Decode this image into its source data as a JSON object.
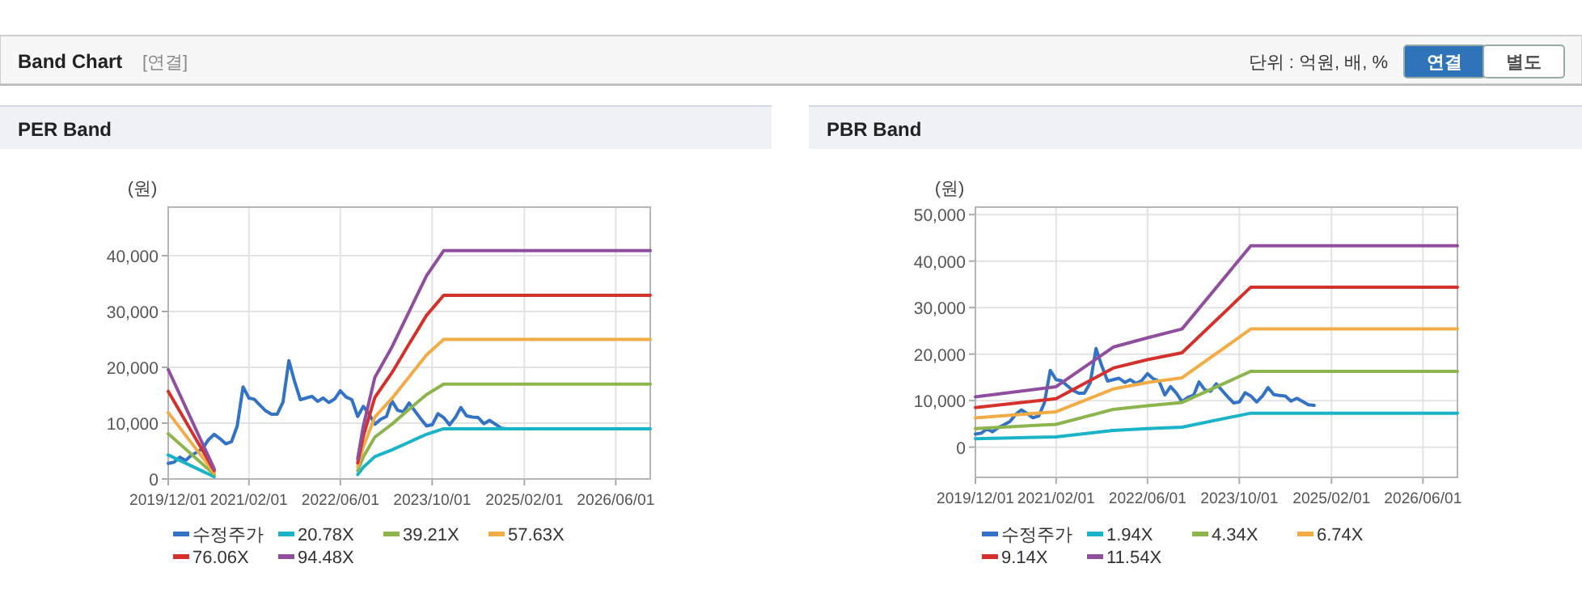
{
  "chart_data": [
    {
      "type": "line",
      "title": "PER Band",
      "ylabel": "(원)",
      "annotations": [
        "Band Chart",
        "[연결]",
        "단위 : 억원, 배, %",
        "연결",
        "별도"
      ],
      "x": [
        "2019-12",
        "2020-01",
        "2020-02",
        "2020-03",
        "2020-04",
        "2020-05",
        "2020-06",
        "2020-07",
        "2020-08",
        "2020-09",
        "2020-10",
        "2020-11",
        "2020-12",
        "2021-01",
        "2021-02",
        "2021-03",
        "2021-04",
        "2021-05",
        "2021-06",
        "2021-07",
        "2021-08",
        "2021-09",
        "2021-10",
        "2021-11",
        "2021-12",
        "2022-01",
        "2022-02",
        "2022-03",
        "2022-04",
        "2022-05",
        "2022-06",
        "2022-07",
        "2022-08",
        "2022-09",
        "2022-10",
        "2022-11",
        "2022-12",
        "2023-01",
        "2023-02",
        "2023-03",
        "2023-04",
        "2023-05",
        "2023-06",
        "2023-07",
        "2023-08",
        "2023-09",
        "2023-10",
        "2023-11",
        "2023-12",
        "2024-01",
        "2024-02",
        "2024-03",
        "2024-04",
        "2024-05",
        "2024-06",
        "2024-07",
        "2024-08",
        "2024-09",
        "2024-10",
        "2024-11"
      ],
      "series": [
        {
          "name": "수정주가",
          "color": "#3273c6",
          "values": [
            2800,
            3000,
            3900,
            3300,
            4200,
            4800,
            5500,
            7000,
            8000,
            7200,
            6300,
            6700,
            9500,
            16500,
            14500,
            14300,
            13200,
            12200,
            11600,
            11600,
            13800,
            21200,
            17500,
            14200,
            14500,
            14800,
            13900,
            14500,
            13700,
            14300,
            15800,
            14700,
            14200,
            11200,
            13000,
            11600,
            9800,
            10700,
            11200,
            14000,
            12300,
            12000,
            13600,
            12200,
            10800,
            9500,
            9700,
            11700,
            11000,
            9700,
            11000,
            12800,
            11300,
            11100,
            11000,
            9900,
            10500,
            9800,
            9100,
            9000
          ]
        },
        {
          "name": "20.78X",
          "color": "#1ab3c8",
          "x": [
            "2019-12",
            "2020-08",
            "2020-09",
            "2022-09",
            "2022-10",
            "2022-12",
            "2023-03",
            "2023-06",
            "2023-09",
            "2023-12",
            "2026-12"
          ],
          "values": [
            4300,
            400,
            null,
            800,
            2100,
            4000,
            5200,
            6600,
            8000,
            9000,
            9000
          ]
        },
        {
          "name": "39.21X",
          "color": "#8db54e",
          "x": [
            "2019-12",
            "2020-08",
            "2020-09",
            "2022-09",
            "2022-10",
            "2022-12",
            "2023-03",
            "2023-06",
            "2023-09",
            "2023-12",
            "2026-12"
          ],
          "values": [
            8100,
            800,
            null,
            1500,
            4000,
            7500,
            9800,
            12500,
            15100,
            17000,
            17000
          ]
        },
        {
          "name": "57.63X",
          "color": "#f2ac45",
          "x": [
            "2019-12",
            "2020-08",
            "2020-09",
            "2022-09",
            "2022-10",
            "2022-12",
            "2023-03",
            "2023-06",
            "2023-09",
            "2023-12",
            "2026-12"
          ],
          "values": [
            11900,
            1100,
            null,
            2200,
            5800,
            11100,
            14400,
            18300,
            22200,
            25000,
            25000
          ]
        },
        {
          "name": "76.06X",
          "color": "#d4312c",
          "x": [
            "2019-12",
            "2020-08",
            "2020-09",
            "2022-09",
            "2022-10",
            "2022-12",
            "2023-03",
            "2023-06",
            "2023-09",
            "2023-12",
            "2026-12"
          ],
          "values": [
            15700,
            1500,
            null,
            2900,
            7700,
            14600,
            19000,
            24200,
            29300,
            32900,
            32900
          ]
        },
        {
          "name": "94.48X",
          "color": "#8f4f9e",
          "x": [
            "2019-12",
            "2020-08",
            "2020-09",
            "2022-09",
            "2022-10",
            "2022-12",
            "2023-03",
            "2023-06",
            "2023-09",
            "2023-12",
            "2026-12"
          ],
          "values": [
            19600,
            1800,
            null,
            3600,
            9500,
            18200,
            23600,
            30000,
            36400,
            40900,
            40900
          ]
        }
      ],
      "xlim": [
        "2019-12-01",
        "2026-12-01"
      ],
      "xticks": [
        {
          "value": "2019-12-01",
          "label": "2019/12/01"
        },
        {
          "value": "2021-02-01",
          "label": "2021/02/01"
        },
        {
          "value": "2022-06-01",
          "label": "2022/06/01"
        },
        {
          "value": "2023-10-01",
          "label": "2023/10/01"
        },
        {
          "value": "2025-02-01",
          "label": "2025/02/01"
        },
        {
          "value": "2026-06-01",
          "label": "2026/06/01"
        }
      ],
      "ylim": [
        0,
        48700
      ],
      "yticks": [
        0,
        {
          "value": 10000,
          "label": "10,000"
        },
        {
          "value": 20000,
          "label": "20,000"
        },
        {
          "value": 30000,
          "label": "30,000"
        },
        {
          "value": 40000,
          "label": "40,000"
        }
      ],
      "grid": true,
      "legend": "bottom"
    },
    {
      "type": "line",
      "title": "PBR Band",
      "ylabel": "(원)",
      "x": [
        "2019-12",
        "2020-01",
        "2020-02",
        "2020-03",
        "2020-04",
        "2020-05",
        "2020-06",
        "2020-07",
        "2020-08",
        "2020-09",
        "2020-10",
        "2020-11",
        "2020-12",
        "2021-01",
        "2021-02",
        "2021-03",
        "2021-04",
        "2021-05",
        "2021-06",
        "2021-07",
        "2021-08",
        "2021-09",
        "2021-10",
        "2021-11",
        "2021-12",
        "2022-01",
        "2022-02",
        "2022-03",
        "2022-04",
        "2022-05",
        "2022-06",
        "2022-07",
        "2022-08",
        "2022-09",
        "2022-10",
        "2022-11",
        "2022-12",
        "2023-01",
        "2023-02",
        "2023-03",
        "2023-04",
        "2023-05",
        "2023-06",
        "2023-07",
        "2023-08",
        "2023-09",
        "2023-10",
        "2023-11",
        "2023-12",
        "2024-01",
        "2024-02",
        "2024-03",
        "2024-04",
        "2024-05",
        "2024-06",
        "2024-07",
        "2024-08",
        "2024-09",
        "2024-10",
        "2024-11"
      ],
      "series": [
        {
          "name": "수정주가",
          "color": "#3273c6",
          "values": [
            2800,
            3000,
            3900,
            3300,
            4200,
            4800,
            5500,
            7000,
            8000,
            7200,
            6300,
            6700,
            9500,
            16500,
            14500,
            14300,
            13200,
            12200,
            11600,
            11600,
            13800,
            21200,
            17500,
            14200,
            14500,
            14800,
            13900,
            14500,
            13700,
            14300,
            15800,
            14700,
            14200,
            11200,
            13000,
            11600,
            9800,
            10700,
            11200,
            14000,
            12300,
            12000,
            13600,
            12200,
            10800,
            9500,
            9700,
            11700,
            11000,
            9700,
            11000,
            12800,
            11300,
            11100,
            11000,
            9900,
            10500,
            9800,
            9100,
            9000
          ]
        },
        {
          "name": "1.94X",
          "color": "#1ab3c8",
          "x": [
            "2019-12",
            "2021-02",
            "2021-12",
            "2022-06",
            "2022-12",
            "2023-12",
            "2026-12"
          ],
          "values": [
            1800,
            2200,
            3600,
            4000,
            4300,
            7300,
            7300
          ]
        },
        {
          "name": "4.34X",
          "color": "#8db54e",
          "x": [
            "2019-12",
            "2021-02",
            "2021-12",
            "2022-06",
            "2022-12",
            "2023-12",
            "2026-12"
          ],
          "values": [
            4000,
            4900,
            8100,
            8900,
            9600,
            16300,
            16300
          ]
        },
        {
          "name": "6.74X",
          "color": "#f2ac45",
          "x": [
            "2019-12",
            "2021-02",
            "2021-12",
            "2022-06",
            "2022-12",
            "2023-12",
            "2026-12"
          ],
          "values": [
            6300,
            7600,
            12500,
            13900,
            14900,
            25400,
            25400
          ]
        },
        {
          "name": "9.14X",
          "color": "#d4312c",
          "x": [
            "2019-12",
            "2021-02",
            "2021-12",
            "2022-06",
            "2022-12",
            "2023-12",
            "2026-12"
          ],
          "values": [
            8500,
            10400,
            17000,
            18800,
            20300,
            34400,
            34400
          ]
        },
        {
          "name": "11.54X",
          "color": "#8f4f9e",
          "x": [
            "2019-12",
            "2021-02",
            "2021-12",
            "2022-06",
            "2022-12",
            "2023-12",
            "2026-12"
          ],
          "values": [
            10800,
            13000,
            21500,
            23500,
            25400,
            43300,
            43300
          ]
        }
      ],
      "xlim": [
        "2019-12-01",
        "2026-12-01"
      ],
      "xticks": [
        {
          "value": "2019-12-01",
          "label": "2019/12/01"
        },
        {
          "value": "2021-02-01",
          "label": "2021/02/01"
        },
        {
          "value": "2022-06-01",
          "label": "2022/06/01"
        },
        {
          "value": "2023-10-01",
          "label": "2023/10/01"
        },
        {
          "value": "2025-02-01",
          "label": "2025/02/01"
        },
        {
          "value": "2026-06-01",
          "label": "2026/06/01"
        }
      ],
      "ylim": [
        -6500,
        51600
      ],
      "yticks": [
        0,
        {
          "value": 10000,
          "label": "10,000"
        },
        {
          "value": 20000,
          "label": "20,000"
        },
        {
          "value": 30000,
          "label": "30,000"
        },
        {
          "value": 40000,
          "label": "40,000"
        },
        {
          "value": 50000,
          "label": "50,000"
        }
      ],
      "grid": true,
      "legend": "bottom"
    }
  ]
}
